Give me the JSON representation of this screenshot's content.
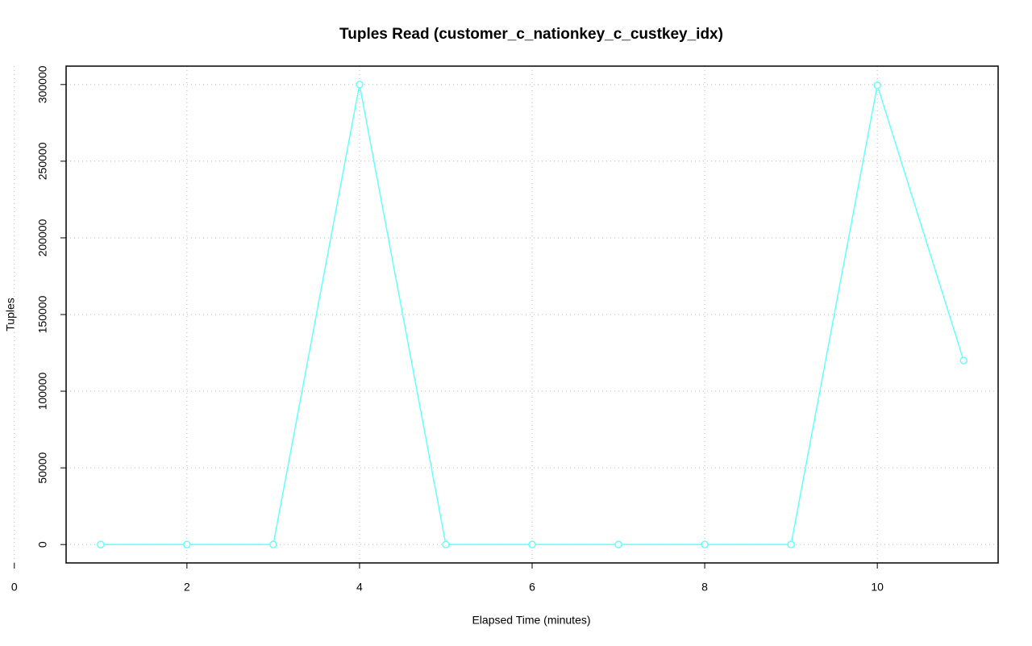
{
  "chart_data": {
    "type": "line",
    "title": "Tuples Read (customer_c_nationkey_c_custkey_idx)",
    "x_label": "Elapsed Time (minutes)",
    "y_label": "Tuples",
    "x": [
      1,
      2,
      3,
      4,
      5,
      6,
      7,
      8,
      9,
      10,
      11
    ],
    "series": [
      {
        "name": "Tuples Read",
        "color": "#66ffff",
        "values": [
          0,
          0,
          0,
          300000,
          0,
          0,
          0,
          0,
          0,
          299500,
          120000
        ]
      }
    ],
    "xlim": [
      0.6,
      11.4
    ],
    "xticks": [
      0,
      2,
      4,
      6,
      8,
      10
    ],
    "ylim": [
      -12000,
      312000
    ],
    "yticks": [
      0,
      50000,
      100000,
      150000,
      200000,
      250000,
      300000
    ],
    "grid": true
  }
}
